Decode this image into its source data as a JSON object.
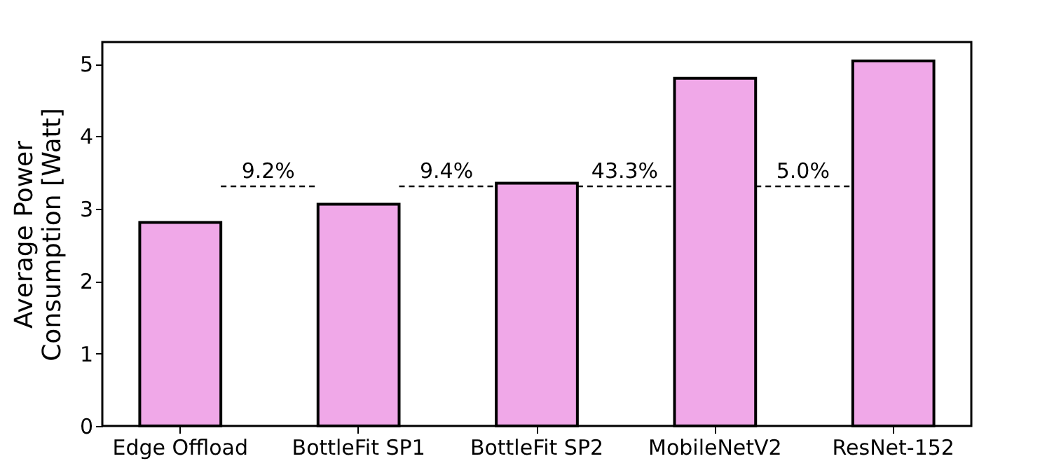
{
  "chart_data": {
    "type": "bar",
    "ylabel": "Average Power\nConsumption [Watt]",
    "categories": [
      "Edge Offload",
      "BottleFit SP1",
      "BottleFit SP2",
      "MobileNetV2",
      "ResNet-152"
    ],
    "values": [
      2.81,
      3.06,
      3.35,
      4.8,
      5.04
    ],
    "color": "#f0a8e8",
    "ylim": [
      0,
      5.3
    ],
    "yticks": [
      0,
      1,
      2,
      3,
      4,
      5
    ],
    "grid": false,
    "annotations": [
      "9.2%",
      "9.4%",
      "43.3%",
      "5.0%"
    ]
  }
}
